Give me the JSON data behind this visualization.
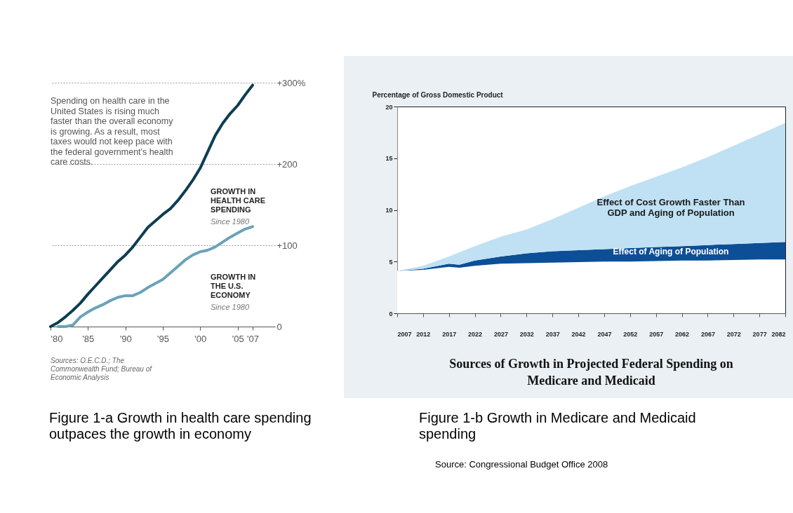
{
  "chart_data": [
    {
      "type": "line",
      "xlim": [
        1980,
        2010
      ],
      "ylim": [
        0,
        300
      ],
      "xticks": [
        {
          "value": 1980,
          "label": "'80"
        },
        {
          "value": 1985,
          "label": "'85"
        },
        {
          "value": 1990,
          "label": "'90"
        },
        {
          "value": 1995,
          "label": "'95"
        },
        {
          "value": 2000,
          "label": "'00"
        },
        {
          "value": 2005,
          "label": "'05"
        },
        {
          "value": 2007,
          "label": "'07"
        }
      ],
      "yticks": [
        0,
        {
          "value": 100,
          "label": "+100"
        },
        {
          "value": 200,
          "label": "+200"
        },
        {
          "value": 300,
          "label": "+300%"
        }
      ],
      "grid": "y",
      "series": [
        {
          "name": "GROWTH IN HEALTH CARE SPENDING",
          "color": "#0e3d52",
          "x": [
            1980,
            1981,
            1982,
            1983,
            1984,
            1985,
            1986,
            1987,
            1988,
            1989,
            1990,
            1991,
            1992,
            1993,
            1994,
            1995,
            1996,
            1997,
            1998,
            1999,
            2000,
            2001,
            2002,
            2003,
            2004,
            2005,
            2006,
            2007
          ],
          "values": [
            0,
            5,
            12,
            20,
            29,
            40,
            50,
            60,
            70,
            80,
            88,
            98,
            110,
            122,
            130,
            138,
            145,
            155,
            167,
            180,
            195,
            215,
            235,
            250,
            262,
            272,
            285,
            297
          ]
        },
        {
          "name": "GROWTH IN THE U.S. ECONOMY",
          "color": "#6aa3b8",
          "x": [
            1981,
            1982,
            1983,
            1984,
            1985,
            1986,
            1987,
            1988,
            1989,
            1990,
            1991,
            1992,
            1993,
            1994,
            1995,
            1996,
            1997,
            1998,
            1999,
            2000,
            2001,
            2002,
            2003,
            2004,
            2005,
            2006,
            2007
          ],
          "values": [
            0,
            0,
            2,
            12,
            18,
            23,
            27,
            32,
            36,
            38,
            38,
            42,
            48,
            53,
            58,
            66,
            74,
            82,
            88,
            92,
            94,
            98,
            104,
            110,
            115,
            120,
            123
          ]
        }
      ],
      "annotations": [
        "Spending on health care in the United States is rising much faster than the overall economy is growing. As a result, most taxes would not keep pace with the federal government's health care costs.",
        "Since 1980",
        "Since 1980",
        "Sources: O.E.C.D.; The Commonwealth Fund; Bureau of Economic Analysis",
        "Figure 1-a  Growth in health care spending outpaces the growth in economy"
      ]
    },
    {
      "type": "area",
      "stacked": true,
      "title": "Sources of Growth in Projected Federal Spending on Medicare and Medicaid",
      "ylabel": "Percentage of Gross Domestic Product",
      "xlim": [
        2007,
        2082
      ],
      "ylim": [
        0,
        20
      ],
      "xticks": [
        2007,
        2012,
        2017,
        2022,
        2027,
        2032,
        2037,
        2042,
        2047,
        2052,
        2057,
        2062,
        2067,
        2072,
        2077,
        2082
      ],
      "yticks": [
        0,
        5,
        10,
        15,
        20
      ],
      "x": [
        2007,
        2012,
        2017,
        2019,
        2022,
        2027,
        2032,
        2037,
        2042,
        2047,
        2052,
        2057,
        2062,
        2067,
        2072,
        2077,
        2082
      ],
      "series": [
        {
          "color": "#ffffff",
          "values": [
            4.1,
            4.2,
            4.5,
            4.4,
            4.6,
            4.8,
            4.85,
            4.9,
            4.95,
            5.0,
            5.0,
            5.05,
            5.1,
            5.1,
            5.15,
            5.2,
            5.2
          ]
        },
        {
          "name": "Effect of Aging of Population",
          "color": "#0d4f97",
          "values": [
            0,
            0.1,
            0.3,
            0.3,
            0.5,
            0.7,
            0.95,
            1.1,
            1.15,
            1.2,
            1.3,
            1.35,
            1.4,
            1.5,
            1.55,
            1.6,
            1.7
          ]
        },
        {
          "name": "Effect of Cost Growth Faster Than GDP and Aging of Population",
          "color": "#bfe1f3",
          "values": [
            0,
            0.3,
            0.7,
            1.2,
            1.4,
            1.9,
            2.3,
            3.1,
            4.1,
            5.1,
            6.0,
            6.8,
            7.6,
            8.5,
            9.5,
            10.5,
            11.5
          ]
        }
      ],
      "annotations": [
        "Figure 1-b Growth in Medicare and Medicaid spending",
        "Source: Congressional Budget Office 2008"
      ]
    }
  ]
}
